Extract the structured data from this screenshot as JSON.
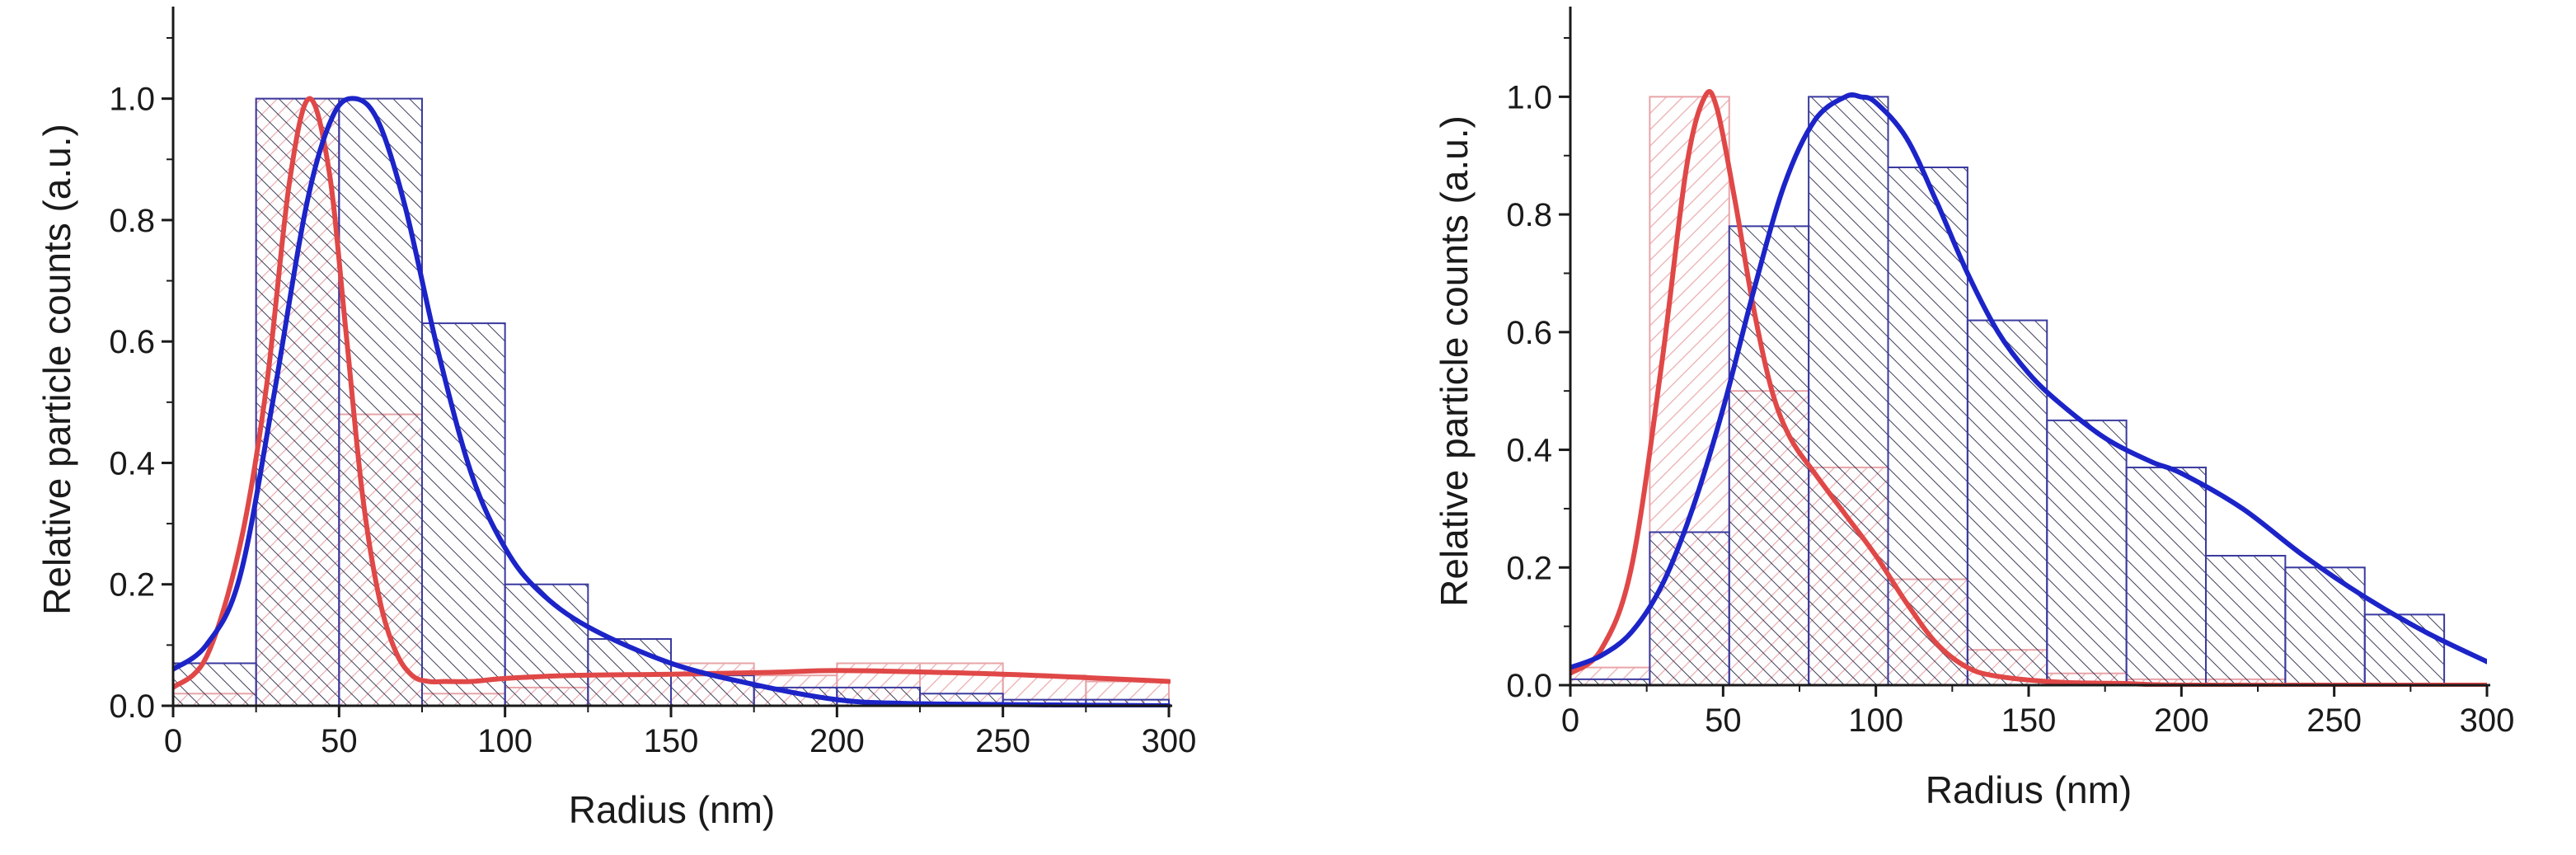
{
  "colors": {
    "red_curve": "#e04848",
    "blue_curve": "#1c24c8",
    "axis": "#1a1a1a",
    "red_hatch": "#e8a4a8",
    "blue_hatch": "#2a2a4a",
    "blue_outline": "#3a3aa0"
  },
  "chart_data": [
    {
      "type": "bar",
      "panel": "left",
      "xlabel": "Radius (nm)",
      "ylabel": "Relative particle counts (a.u.)",
      "xlim": [
        0,
        300
      ],
      "ylim": [
        0,
        1.1
      ],
      "xticks": [
        "0",
        "50",
        "100",
        "150",
        "200",
        "250",
        "300"
      ],
      "yticks": [
        "0.0",
        "0.2",
        "0.4",
        "0.6",
        "0.8",
        "1.0"
      ],
      "series": [
        {
          "name": "red histogram",
          "kind": "histogram",
          "color_key": "red_hatch",
          "bins": [
            [
              0,
              25,
              0.02
            ],
            [
              25,
              50,
              1.0
            ],
            [
              50,
              75,
              0.48
            ],
            [
              75,
              100,
              0.02
            ],
            [
              100,
              125,
              0.03
            ],
            [
              125,
              150,
              0.05
            ],
            [
              150,
              175,
              0.07
            ],
            [
              175,
              200,
              0.05
            ],
            [
              200,
              225,
              0.07
            ],
            [
              225,
              250,
              0.07
            ],
            [
              250,
              275,
              0.05
            ],
            [
              275,
              300,
              0.04
            ]
          ]
        },
        {
          "name": "blue histogram",
          "kind": "histogram",
          "color_key": "blue_hatch",
          "bins": [
            [
              0,
              25,
              0.07
            ],
            [
              25,
              50,
              1.0
            ],
            [
              50,
              75,
              1.0
            ],
            [
              75,
              100,
              0.63
            ],
            [
              100,
              125,
              0.2
            ],
            [
              125,
              150,
              0.11
            ],
            [
              150,
              175,
              0.05
            ],
            [
              175,
              200,
              0.03
            ],
            [
              200,
              225,
              0.03
            ],
            [
              225,
              250,
              0.02
            ],
            [
              250,
              275,
              0.01
            ],
            [
              275,
              300,
              0.01
            ]
          ]
        },
        {
          "name": "red fit",
          "kind": "line",
          "color_key": "red_curve",
          "x": [
            0,
            10,
            20,
            28,
            35,
            41,
            47,
            52,
            57,
            62,
            67,
            72,
            77,
            82,
            90,
            100,
            120,
            150,
            180,
            200,
            230,
            260,
            300
          ],
          "y": [
            0.03,
            0.08,
            0.26,
            0.52,
            0.86,
            1.0,
            0.88,
            0.62,
            0.35,
            0.18,
            0.09,
            0.05,
            0.04,
            0.04,
            0.04,
            0.045,
            0.05,
            0.052,
            0.055,
            0.058,
            0.055,
            0.05,
            0.04
          ]
        },
        {
          "name": "blue fit",
          "kind": "line",
          "color_key": "blue_curve",
          "x": [
            0,
            10,
            20,
            30,
            40,
            48,
            55,
            62,
            70,
            80,
            90,
            100,
            110,
            125,
            150,
            175,
            200,
            220,
            250,
            300
          ],
          "y": [
            0.06,
            0.1,
            0.21,
            0.5,
            0.82,
            0.97,
            1.0,
            0.96,
            0.82,
            0.58,
            0.38,
            0.26,
            0.19,
            0.13,
            0.07,
            0.035,
            0.01,
            0.004,
            0.002,
            0.0
          ]
        }
      ]
    },
    {
      "type": "bar",
      "panel": "right",
      "xlabel": "Radius (nm)",
      "ylabel": "Relative particle counts (a.u.)",
      "xlim": [
        0,
        300
      ],
      "ylim": [
        0,
        1.1
      ],
      "xticks": [
        "0",
        "50",
        "100",
        "150",
        "200",
        "250",
        "300"
      ],
      "yticks": [
        "0.0",
        "0.2",
        "0.4",
        "0.6",
        "0.8",
        "1.0"
      ],
      "series": [
        {
          "name": "red histogram",
          "kind": "histogram",
          "color_key": "red_hatch",
          "bins": [
            [
              0,
              26,
              0.03
            ],
            [
              26,
              52,
              1.0
            ],
            [
              52,
              78,
              0.5
            ],
            [
              78,
              104,
              0.37
            ],
            [
              104,
              130,
              0.18
            ],
            [
              130,
              156,
              0.06
            ],
            [
              156,
              182,
              0.02
            ],
            [
              182,
              208,
              0.01
            ],
            [
              208,
              234,
              0.01
            ],
            [
              234,
              260,
              0.0
            ],
            [
              260,
              286,
              0.0
            ]
          ]
        },
        {
          "name": "blue histogram",
          "kind": "histogram",
          "color_key": "blue_hatch",
          "bins": [
            [
              0,
              26,
              0.01
            ],
            [
              26,
              52,
              0.26
            ],
            [
              52,
              78,
              0.78
            ],
            [
              78,
              104,
              1.0
            ],
            [
              104,
              130,
              0.88
            ],
            [
              130,
              156,
              0.62
            ],
            [
              156,
              182,
              0.45
            ],
            [
              182,
              208,
              0.37
            ],
            [
              208,
              234,
              0.22
            ],
            [
              234,
              260,
              0.2
            ],
            [
              260,
              286,
              0.12
            ]
          ]
        },
        {
          "name": "red fit",
          "kind": "line",
          "color_key": "red_curve",
          "x": [
            0,
            10,
            20,
            30,
            38,
            44,
            48,
            54,
            60,
            66,
            72,
            80,
            90,
            100,
            110,
            120,
            130,
            140,
            160,
            180,
            200,
            250,
            300
          ],
          "y": [
            0.02,
            0.06,
            0.2,
            0.55,
            0.88,
            1.0,
            0.98,
            0.82,
            0.64,
            0.5,
            0.42,
            0.36,
            0.29,
            0.22,
            0.14,
            0.07,
            0.03,
            0.015,
            0.005,
            0.003,
            0.0,
            0.0,
            0.0
          ]
        },
        {
          "name": "blue fit",
          "kind": "line",
          "color_key": "blue_curve",
          "x": [
            0,
            10,
            20,
            30,
            40,
            50,
            60,
            70,
            80,
            90,
            95,
            100,
            110,
            120,
            130,
            140,
            150,
            160,
            175,
            190,
            200,
            220,
            240,
            260,
            280,
            300
          ],
          "y": [
            0.03,
            0.05,
            0.09,
            0.17,
            0.3,
            0.47,
            0.67,
            0.85,
            0.96,
            1.0,
            1.0,
            0.99,
            0.93,
            0.82,
            0.7,
            0.6,
            0.53,
            0.48,
            0.42,
            0.38,
            0.36,
            0.3,
            0.22,
            0.15,
            0.09,
            0.04
          ]
        }
      ]
    }
  ]
}
